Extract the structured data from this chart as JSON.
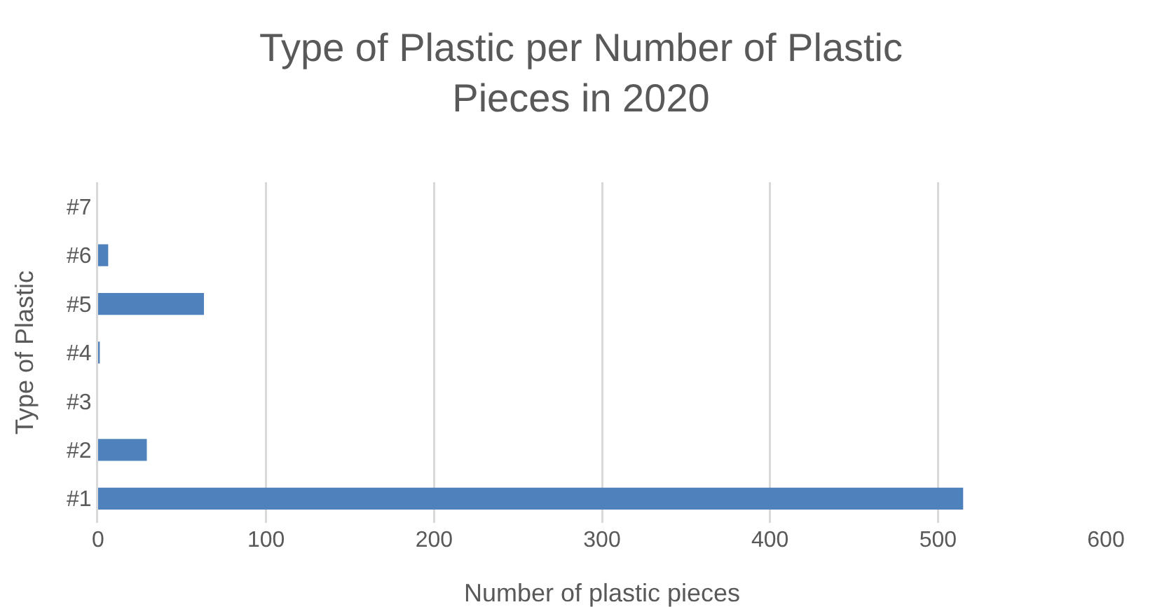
{
  "chart_data": {
    "type": "bar",
    "orientation": "horizontal",
    "title": "Type of Plastic per Number of Plastic Pieces in 2020",
    "xlabel": "Number of plastic pieces",
    "ylabel": "Type of Plastic",
    "categories": [
      "#7",
      "#6",
      "#5",
      "#4",
      "#3",
      "#2",
      "#1"
    ],
    "values": [
      0,
      6,
      63,
      1,
      0,
      29,
      515
    ],
    "color": "#4f81bd",
    "xlim": [
      0,
      600
    ],
    "xticks": [
      0,
      100,
      200,
      300,
      400,
      500,
      600
    ],
    "grid": "x"
  }
}
